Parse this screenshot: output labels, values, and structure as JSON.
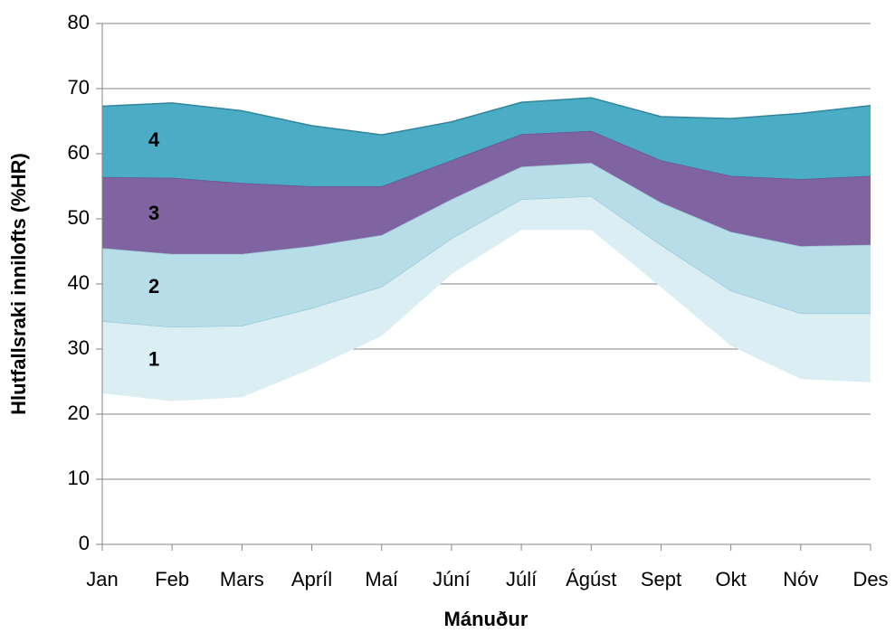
{
  "chart_data": {
    "type": "stacked_area",
    "y_label": "Hlutfallsraki innilofts (%HR)",
    "x_label": "Mánuður",
    "categories": [
      "Jan",
      "Feb",
      "Mars",
      "Apríl",
      "Maí",
      "Júní",
      "Júlí",
      "Ágúst",
      "Sept",
      "Okt",
      "Nóv",
      "Des"
    ],
    "base": [
      23.2,
      22,
      22.6,
      27,
      32,
      41.5,
      48.3,
      48.3,
      39.5,
      30.5,
      25.4,
      24.9
    ],
    "series": [
      {
        "name": "1",
        "color": "#daeef3",
        "values": [
          11.1,
          11.4,
          11.0,
          9.3,
          7.6,
          5.5,
          4.7,
          5.2,
          6.5,
          8.5,
          10.1,
          10.6
        ]
      },
      {
        "name": "2",
        "color": "#b7dde8",
        "values": [
          11.2,
          11.2,
          11.0,
          9.5,
          7.9,
          6.0,
          5.0,
          5.1,
          6.5,
          9.0,
          10.3,
          10.5
        ]
      },
      {
        "name": "3",
        "color": "#8064a2",
        "values": [
          10.9,
          11.7,
          10.9,
          9.2,
          7.5,
          6.0,
          5.0,
          4.9,
          6.5,
          8.6,
          10.3,
          10.6
        ]
      },
      {
        "name": "4",
        "color": "#4bacc6",
        "values": [
          10.9,
          11.5,
          11.1,
          9.3,
          7.9,
          5.9,
          4.9,
          5.1,
          6.7,
          8.8,
          10.1,
          10.8
        ]
      }
    ],
    "ylim": [
      0,
      80
    ],
    "yticks": [
      0,
      10,
      20,
      30,
      40,
      50,
      60,
      70,
      80
    ],
    "grid": true
  }
}
